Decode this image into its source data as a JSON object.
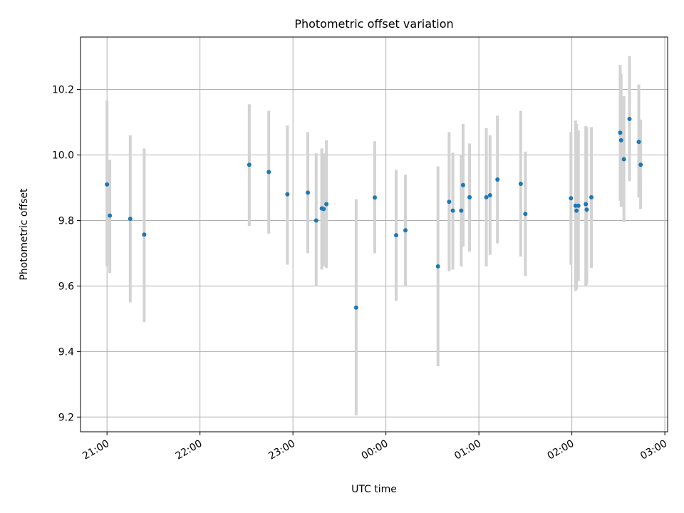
{
  "chart_data": {
    "type": "scatter",
    "title": "Photometric offset variation",
    "xlabel": "UTC time",
    "ylabel": "Photometric offset",
    "x_unit": "hours",
    "x_range_hours": [
      20.715,
      27.03
    ],
    "ylim": [
      9.155,
      10.36
    ],
    "x_ticks": [
      {
        "h": 21,
        "label": "21:00"
      },
      {
        "h": 22,
        "label": "22:00"
      },
      {
        "h": 23,
        "label": "23:00"
      },
      {
        "h": 24,
        "label": "00:00"
      },
      {
        "h": 25,
        "label": "01:00"
      },
      {
        "h": 26,
        "label": "02:00"
      },
      {
        "h": 27,
        "label": "03:00"
      }
    ],
    "y_ticks": [
      {
        "v": 9.2,
        "label": "9.2"
      },
      {
        "v": 9.4,
        "label": "9.4"
      },
      {
        "v": 9.6,
        "label": "9.6"
      },
      {
        "v": 9.8,
        "label": "9.8"
      },
      {
        "v": 10.0,
        "label": "10.0"
      },
      {
        "v": 10.2,
        "label": "10.2"
      }
    ],
    "grid": true,
    "point_color": "#1f77b4",
    "errorbar_color": "#d3d3d3",
    "points": [
      {
        "x": 21.0,
        "y": 9.91,
        "lo": 9.66,
        "hi": 10.165
      },
      {
        "x": 21.03,
        "y": 9.815,
        "lo": 9.64,
        "hi": 9.985
      },
      {
        "x": 21.25,
        "y": 9.805,
        "lo": 9.55,
        "hi": 10.06
      },
      {
        "x": 21.4,
        "y": 9.757,
        "lo": 9.49,
        "hi": 10.02
      },
      {
        "x": 22.53,
        "y": 9.97,
        "lo": 9.783,
        "hi": 10.155
      },
      {
        "x": 22.74,
        "y": 9.948,
        "lo": 9.76,
        "hi": 10.135
      },
      {
        "x": 22.94,
        "y": 9.88,
        "lo": 9.665,
        "hi": 10.09
      },
      {
        "x": 23.16,
        "y": 9.885,
        "lo": 9.7,
        "hi": 10.07
      },
      {
        "x": 23.25,
        "y": 9.8,
        "lo": 9.6,
        "hi": 10.005
      },
      {
        "x": 23.31,
        "y": 9.837,
        "lo": 9.65,
        "hi": 10.02
      },
      {
        "x": 23.33,
        "y": 9.835,
        "lo": 9.66,
        "hi": 10.005
      },
      {
        "x": 23.36,
        "y": 9.85,
        "lo": 9.655,
        "hi": 10.045
      },
      {
        "x": 23.68,
        "y": 9.534,
        "lo": 9.205,
        "hi": 9.865
      },
      {
        "x": 23.88,
        "y": 9.87,
        "lo": 9.7,
        "hi": 10.042
      },
      {
        "x": 24.11,
        "y": 9.755,
        "lo": 9.555,
        "hi": 9.955
      },
      {
        "x": 24.21,
        "y": 9.77,
        "lo": 9.6,
        "hi": 9.94
      },
      {
        "x": 24.56,
        "y": 9.66,
        "lo": 9.355,
        "hi": 9.965
      },
      {
        "x": 24.68,
        "y": 9.857,
        "lo": 9.645,
        "hi": 10.07
      },
      {
        "x": 24.72,
        "y": 9.83,
        "lo": 9.65,
        "hi": 10.007
      },
      {
        "x": 24.81,
        "y": 9.83,
        "lo": 9.66,
        "hi": 10.0
      },
      {
        "x": 24.83,
        "y": 9.908,
        "lo": 9.72,
        "hi": 10.095
      },
      {
        "x": 24.9,
        "y": 9.871,
        "lo": 9.705,
        "hi": 10.035
      },
      {
        "x": 25.08,
        "y": 9.871,
        "lo": 9.66,
        "hi": 10.082
      },
      {
        "x": 25.12,
        "y": 9.877,
        "lo": 9.695,
        "hi": 10.06
      },
      {
        "x": 25.2,
        "y": 9.925,
        "lo": 9.73,
        "hi": 10.12
      },
      {
        "x": 25.45,
        "y": 9.912,
        "lo": 9.69,
        "hi": 10.135
      },
      {
        "x": 25.5,
        "y": 9.82,
        "lo": 9.63,
        "hi": 10.01
      },
      {
        "x": 25.99,
        "y": 9.868,
        "lo": 9.665,
        "hi": 10.07
      },
      {
        "x": 26.04,
        "y": 9.845,
        "lo": 9.585,
        "hi": 10.105
      },
      {
        "x": 26.05,
        "y": 9.83,
        "lo": 9.59,
        "hi": 10.095
      },
      {
        "x": 26.07,
        "y": 9.845,
        "lo": 9.615,
        "hi": 10.075
      },
      {
        "x": 26.15,
        "y": 9.85,
        "lo": 9.6,
        "hi": 10.088
      },
      {
        "x": 26.16,
        "y": 9.833,
        "lo": 9.605,
        "hi": 10.085
      },
      {
        "x": 26.21,
        "y": 9.871,
        "lo": 9.655,
        "hi": 10.085
      },
      {
        "x": 26.52,
        "y": 10.068,
        "lo": 9.86,
        "hi": 10.275
      },
      {
        "x": 26.53,
        "y": 10.045,
        "lo": 9.842,
        "hi": 10.248
      },
      {
        "x": 26.56,
        "y": 9.987,
        "lo": 9.795,
        "hi": 10.18
      },
      {
        "x": 26.62,
        "y": 10.11,
        "lo": 9.92,
        "hi": 10.302
      },
      {
        "x": 26.72,
        "y": 10.04,
        "lo": 9.87,
        "hi": 10.215
      },
      {
        "x": 26.74,
        "y": 9.97,
        "lo": 9.835,
        "hi": 10.108
      }
    ]
  }
}
